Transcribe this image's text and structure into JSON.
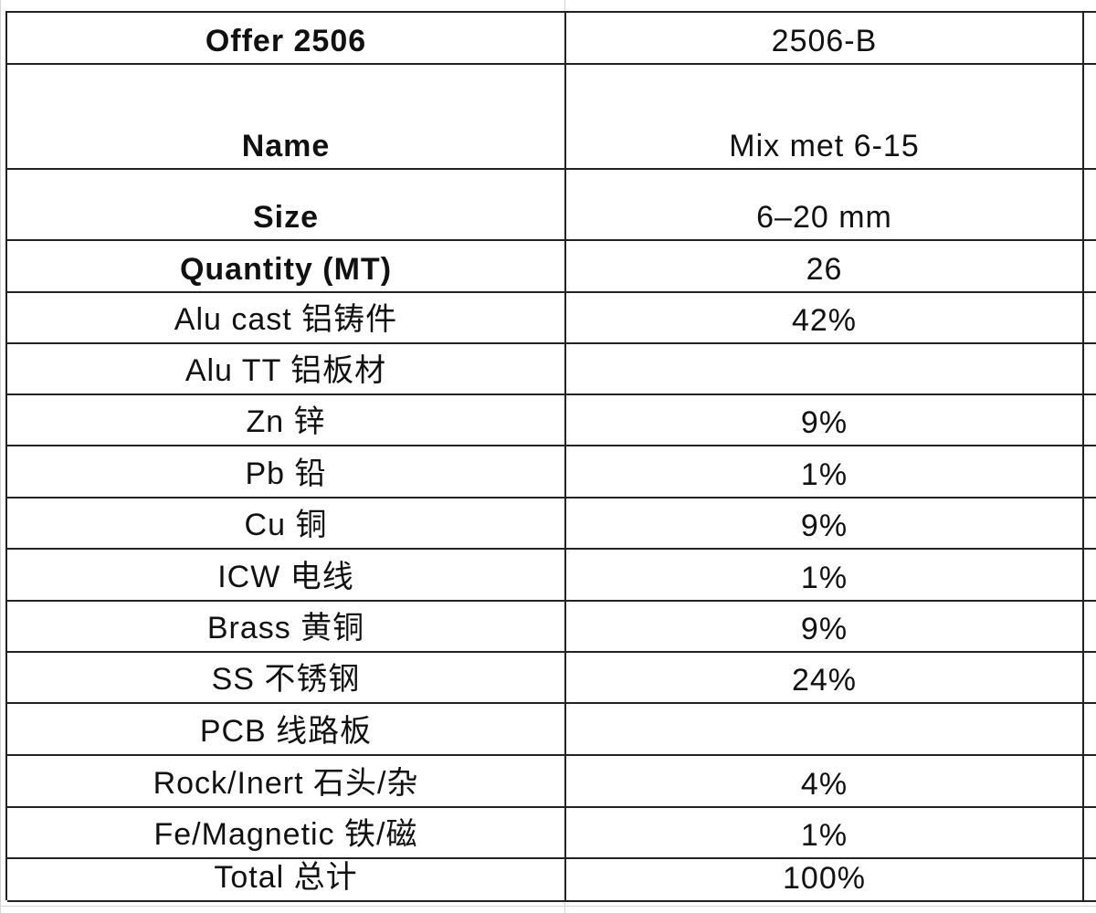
{
  "table": {
    "rows": [
      [
        "Offer 2506",
        "2506-B"
      ],
      [
        "Name",
        "Mix met 6-15"
      ],
      [
        "Size",
        "6–20 mm"
      ],
      [
        "Quantity (MT)",
        "26"
      ],
      [
        "Alu cast 铝铸件",
        "42%"
      ],
      [
        "Alu TT 铝板材",
        null
      ],
      [
        "Zn 锌",
        "9%"
      ],
      [
        "Pb 铅",
        "1%"
      ],
      [
        "Cu 铜",
        "9%"
      ],
      [
        "ICW 电线",
        "1%"
      ],
      [
        "Brass 黄铜",
        "9%"
      ],
      [
        "SS 不锈钢",
        "24%"
      ],
      [
        "PCB 线路板",
        null
      ],
      [
        "Rock/Inert 石头/杂",
        "4%"
      ],
      [
        "Fe/Magnetic 铁/磁",
        "1%"
      ],
      [
        "Total 总计",
        "100%"
      ]
    ]
  }
}
